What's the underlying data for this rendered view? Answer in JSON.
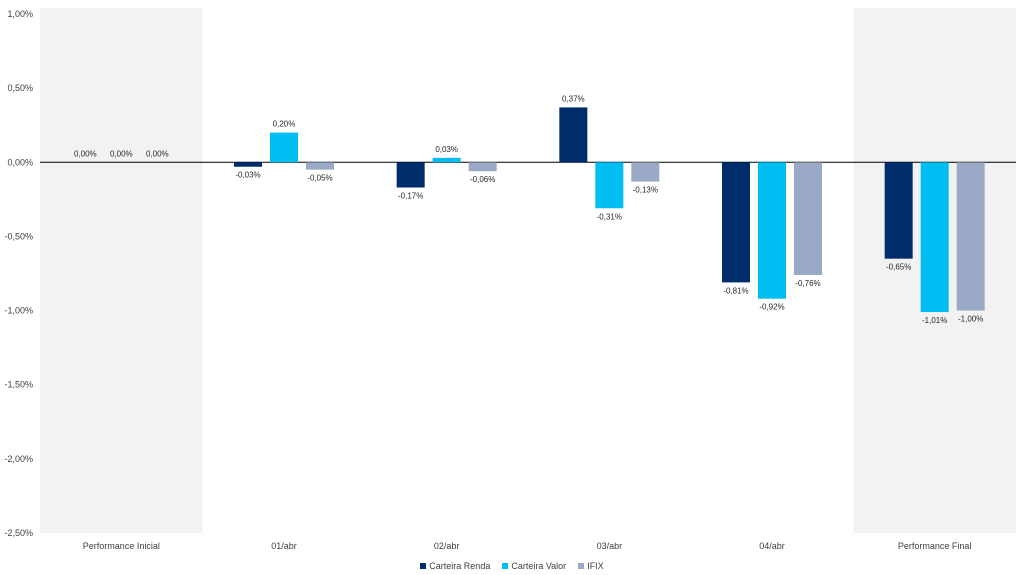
{
  "chart_data": {
    "type": "bar",
    "categories": [
      "Performance Inicial",
      "01/abr",
      "02/abr",
      "03/abr",
      "04/abr",
      "Performance Final"
    ],
    "highlighted_categories": [
      "Performance Inicial",
      "Performance Final"
    ],
    "series": [
      {
        "name": "Carteira Renda",
        "color": "#002C6C",
        "values": [
          0.0,
          -0.03,
          -0.17,
          0.37,
          -0.81,
          -0.65
        ],
        "labels": [
          "0,00%",
          "-0,03%",
          "-0,17%",
          "0,37%",
          "-0,81%",
          "-0,65%"
        ]
      },
      {
        "name": "Carteira Valor",
        "color": "#00BEF2",
        "values": [
          0.0,
          0.2,
          0.03,
          -0.31,
          -0.92,
          -1.01
        ],
        "labels": [
          "0,00%",
          "0,20%",
          "0,03%",
          "-0,31%",
          "-0,92%",
          "-1,01%"
        ]
      },
      {
        "name": "IFIX",
        "color": "#9AAAC6",
        "values": [
          0.0,
          -0.05,
          -0.06,
          -0.13,
          -0.76,
          -1.0
        ],
        "labels": [
          "0,00%",
          "-0,05%",
          "-0,06%",
          "-0,13%",
          "-0,76%",
          "-1,00%"
        ]
      }
    ],
    "ylim": [
      -2.5,
      1.0
    ],
    "yticks": [
      1.0,
      0.5,
      0.0,
      -0.5,
      -1.0,
      -1.5,
      -2.0,
      -2.5
    ],
    "ytick_labels": [
      "1,00%",
      "0,50%",
      "0,00%",
      "-0,50%",
      "-1,00%",
      "-1,50%",
      "-2,00%",
      "-2,50%"
    ],
    "grid": false,
    "legend_position": "bottom-center",
    "highlight_color": "#F2F2F2"
  }
}
